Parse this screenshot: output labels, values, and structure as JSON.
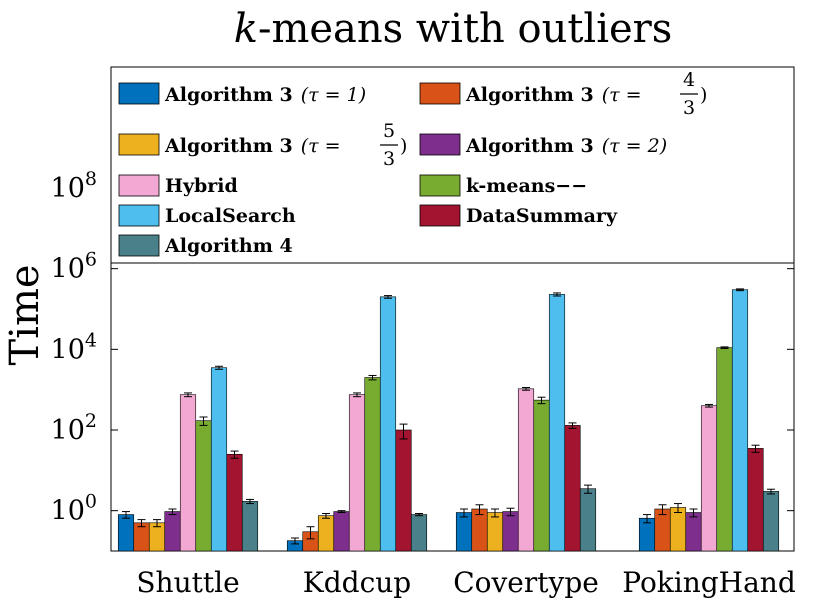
{
  "chart_data": {
    "type": "bar",
    "title_italic": "k",
    "title_rest": "-means with outliers",
    "title": "k-means with outliers",
    "xlabel": "",
    "ylabel": "Time",
    "yscale": "log",
    "ylim": [
      0.1,
      100000000000
    ],
    "yticks": [
      {
        "value": 1,
        "base": "10",
        "exp": "0"
      },
      {
        "value": 100,
        "base": "10",
        "exp": "2"
      },
      {
        "value": 10000,
        "base": "10",
        "exp": "4"
      },
      {
        "value": 1000000,
        "base": "10",
        "exp": "6"
      },
      {
        "value": 100000000,
        "base": "10",
        "exp": "8"
      }
    ],
    "categories": [
      "Shuttle",
      "Kddcup",
      "Covertype",
      "PokingHand"
    ],
    "legend_position": "top",
    "series": [
      {
        "name": "Algorithm 3",
        "param": "(τ = 1)",
        "color": "#0072BD",
        "values": [
          0.8,
          0.18,
          0.9,
          0.65
        ],
        "err": [
          0.15,
          0.03,
          0.2,
          0.15
        ]
      },
      {
        "name": "Algorithm 3",
        "param": "(τ = 4/3)",
        "color": "#D95319",
        "values": [
          0.5,
          0.3,
          1.1,
          1.1
        ],
        "err": [
          0.1,
          0.1,
          0.3,
          0.3
        ]
      },
      {
        "name": "Algorithm 3",
        "param": "(τ = 5/3)",
        "color": "#EDB120",
        "values": [
          0.5,
          0.75,
          0.9,
          1.2
        ],
        "err": [
          0.1,
          0.1,
          0.2,
          0.3
        ]
      },
      {
        "name": "Algorithm 3",
        "param": "(τ = 2)",
        "color": "#7E2F8E",
        "values": [
          0.95,
          0.95,
          0.95,
          0.9
        ],
        "err": [
          0.15,
          0.05,
          0.2,
          0.2
        ]
      },
      {
        "name": "Hybrid",
        "param": "",
        "color": "#F2A8D3",
        "values": [
          750,
          750,
          1050,
          400
        ],
        "err": [
          80,
          80,
          80,
          30
        ]
      },
      {
        "name": "k-means−−",
        "param": "",
        "color": "#77AC30",
        "values": [
          170,
          2000,
          550,
          11000
        ],
        "err": [
          40,
          250,
          100,
          500
        ]
      },
      {
        "name": "LocalSearch",
        "param": "",
        "color": "#4DBEEE",
        "values": [
          3500,
          200000,
          230000,
          300000
        ],
        "err": [
          300,
          15000,
          20000,
          15000
        ]
      },
      {
        "name": "DataSummary",
        "param": "",
        "color": "#A2142F",
        "values": [
          25,
          100,
          130,
          35
        ],
        "err": [
          5,
          40,
          20,
          7
        ]
      },
      {
        "name": "Algorithm 4",
        "param": "",
        "color": "#4A8089",
        "values": [
          1.7,
          0.8,
          3.5,
          3.0
        ],
        "err": [
          0.2,
          0.05,
          0.8,
          0.4
        ]
      }
    ],
    "legend_labels": {
      "s0": {
        "name": "Algorithm 3",
        "pre": "(τ = 1)"
      },
      "s1": {
        "name": "Algorithm 3",
        "pre": "(τ =",
        "num": "4",
        "den": "3",
        "post": ")"
      },
      "s2": {
        "name": "Algorithm 3",
        "pre": "(τ =",
        "num": "5",
        "den": "3",
        "post": ")"
      },
      "s3": {
        "name": "Algorithm 3",
        "pre": "(τ = 2)"
      },
      "s4": {
        "name": "Hybrid"
      },
      "s5": {
        "name": "k-means−−"
      },
      "s6": {
        "name": "LocalSearch"
      },
      "s7": {
        "name": "DataSummary"
      },
      "s8": {
        "name": "Algorithm 4"
      }
    }
  }
}
